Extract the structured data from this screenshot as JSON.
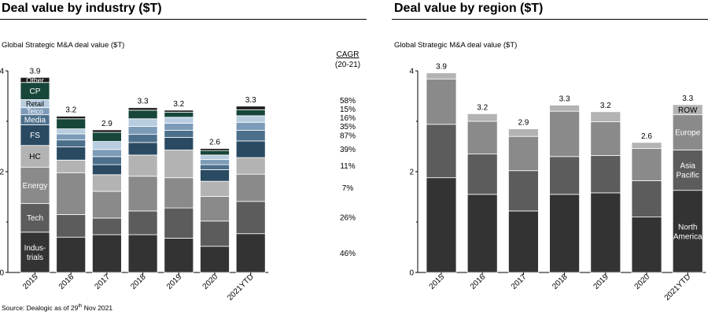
{
  "panels": {
    "left": {
      "title": "Deal value by industry ($T)",
      "subtitle": "Global Strategic M&A deal value ($T)"
    },
    "right": {
      "title": "Deal value by region ($T)",
      "subtitle": "Global Strategic M&A deal value ($T)"
    }
  },
  "source": {
    "prefix": "Source: Dealogic as of 29",
    "sup": "th",
    "suffix": " Nov 2021"
  },
  "chart_data": [
    {
      "type": "bar",
      "stacked": true,
      "title": "Deal value by industry ($T)",
      "ylabel": "Global Strategic M&A deal value ($T)",
      "ylim": [
        0,
        4
      ],
      "yticks": [
        "0",
        "2",
        "4"
      ],
      "categories": [
        "2015",
        "2016",
        "2017",
        "2018",
        "2019",
        "2020",
        "2021YTD"
      ],
      "totals": [
        "3.9",
        "3.2",
        "2.9",
        "3.3",
        "3.2",
        "2.6",
        "3.3"
      ],
      "series": [
        {
          "name": "Industrials",
          "label": "Indus-\ntrials",
          "color": "#333333",
          "cagr": "46%",
          "values": [
            0.8,
            0.7,
            0.75,
            0.75,
            0.68,
            0.52,
            0.77
          ]
        },
        {
          "name": "Tech",
          "label": "Tech",
          "color": "#5c5c5c",
          "cagr": "26%",
          "values": [
            0.57,
            0.45,
            0.33,
            0.47,
            0.6,
            0.5,
            0.64
          ]
        },
        {
          "name": "Energy",
          "label": "Energy",
          "color": "#8a8a8a",
          "cagr": "7%",
          "values": [
            0.72,
            0.83,
            0.53,
            0.69,
            0.6,
            0.49,
            0.54
          ]
        },
        {
          "name": "HC",
          "label": "HC",
          "color": "#b3b3b3",
          "cagr": "11%",
          "values": [
            0.43,
            0.25,
            0.33,
            0.42,
            0.55,
            0.3,
            0.33
          ]
        },
        {
          "name": "FS",
          "label": "FS",
          "color": "#2a4a62",
          "cagr": "39%",
          "values": [
            0.41,
            0.26,
            0.2,
            0.25,
            0.25,
            0.23,
            0.33
          ]
        },
        {
          "name": "Media",
          "label": "Media",
          "color": "#4c6f8b",
          "cagr": "87%",
          "values": [
            0.2,
            0.14,
            0.16,
            0.16,
            0.14,
            0.1,
            0.21
          ]
        },
        {
          "name": "Telco",
          "label": "Telco",
          "color": "#7c9bb8",
          "cagr": "35%",
          "values": [
            0.14,
            0.12,
            0.14,
            0.16,
            0.14,
            0.1,
            0.16
          ]
        },
        {
          "name": "Retail",
          "label": "Retail",
          "color": "#b8cde0",
          "cagr": "16%",
          "values": [
            0.16,
            0.1,
            0.16,
            0.15,
            0.12,
            0.09,
            0.13
          ]
        },
        {
          "name": "CP",
          "label": "CP",
          "color": "#17463a",
          "cagr": "15%",
          "values": [
            0.34,
            0.2,
            0.18,
            0.17,
            0.1,
            0.09,
            0.12
          ]
        },
        {
          "name": "Other",
          "label": "Other",
          "color": "#1c1c1c",
          "cagr": "58%",
          "values": [
            0.1,
            0.05,
            0.05,
            0.05,
            0.04,
            0.04,
            0.07
          ]
        }
      ],
      "cagr_header": {
        "label": "CAGR",
        "range": "(20-21)"
      }
    },
    {
      "type": "bar",
      "stacked": true,
      "title": "Deal value by region ($T)",
      "ylabel": "Global Strategic M&A deal value ($T)",
      "ylim": [
        0,
        4
      ],
      "yticks": [
        "0",
        "2",
        "4"
      ],
      "categories": [
        "2015",
        "2016",
        "2017",
        "2018",
        "2019",
        "2020",
        "2021YTD"
      ],
      "totals": [
        "3.9",
        "3.2",
        "2.9",
        "3.3",
        "3.2",
        "2.6",
        "3.3"
      ],
      "series": [
        {
          "name": "North America",
          "label": "North\nAmerica",
          "color": "#333333",
          "values": [
            1.88,
            1.55,
            1.22,
            1.55,
            1.58,
            1.1,
            1.63
          ]
        },
        {
          "name": "Asia Pacific",
          "label": "Asia\nPacific",
          "color": "#5c5c5c",
          "values": [
            1.06,
            0.8,
            0.8,
            0.75,
            0.74,
            0.72,
            0.8
          ]
        },
        {
          "name": "Europe",
          "label": "Europe",
          "color": "#8a8a8a",
          "values": [
            0.9,
            0.65,
            0.68,
            0.9,
            0.67,
            0.64,
            0.7
          ]
        },
        {
          "name": "ROW",
          "label": "ROW",
          "color": "#b3b3b3",
          "values": [
            0.12,
            0.15,
            0.15,
            0.12,
            0.2,
            0.12,
            0.2
          ]
        }
      ]
    }
  ]
}
